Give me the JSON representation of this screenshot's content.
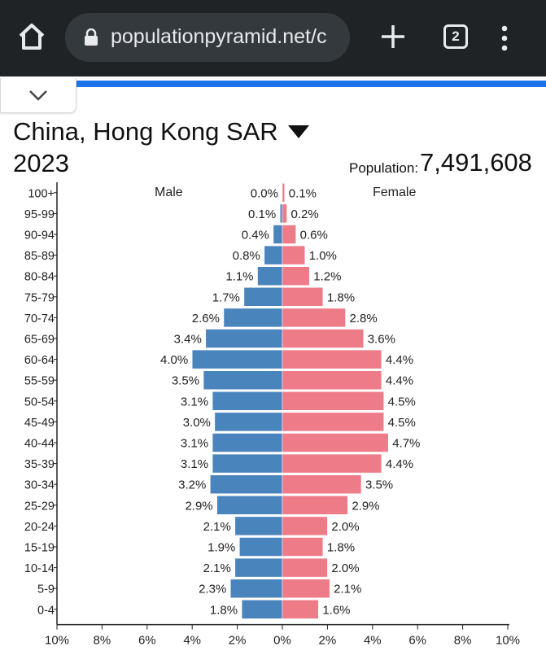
{
  "browser": {
    "url": "populationpyramid.net/c",
    "tab_count": "2",
    "icons": [
      "home-icon",
      "lock-icon",
      "plus-icon",
      "tabs-icon",
      "menu-icon",
      "chevron-down-icon"
    ]
  },
  "header": {
    "title": "China, Hong Kong SAR",
    "year": "2023",
    "population_label": "Population:",
    "population_value": "7,491,608"
  },
  "chart_data": {
    "type": "bar",
    "orientation": "population-pyramid",
    "categories": [
      "100+",
      "95-99",
      "90-94",
      "85-89",
      "80-84",
      "75-79",
      "70-74",
      "65-69",
      "60-64",
      "55-59",
      "50-54",
      "45-49",
      "40-44",
      "35-39",
      "30-34",
      "25-29",
      "20-24",
      "15-19",
      "10-14",
      "5-9",
      "0-4"
    ],
    "series": [
      {
        "name": "Male",
        "color": "#4a84bd",
        "values": [
          0.0,
          0.1,
          0.4,
          0.8,
          1.1,
          1.7,
          2.6,
          3.4,
          4.0,
          3.5,
          3.1,
          3.0,
          3.1,
          3.1,
          3.2,
          2.9,
          2.1,
          1.9,
          2.1,
          2.3,
          1.8
        ]
      },
      {
        "name": "Female",
        "color": "#ee7b88",
        "values": [
          0.1,
          0.2,
          0.6,
          1.0,
          1.2,
          1.8,
          2.8,
          3.6,
          4.4,
          4.4,
          4.5,
          4.5,
          4.7,
          4.4,
          3.5,
          2.9,
          2.0,
          1.8,
          2.0,
          2.1,
          1.6
        ]
      }
    ],
    "xlim": [
      -10,
      10
    ],
    "xticks": [
      "10%",
      "8%",
      "6%",
      "4%",
      "2%",
      "0%",
      "2%",
      "4%",
      "6%",
      "8%",
      "10%"
    ],
    "value_suffix": "%",
    "grid": false
  }
}
